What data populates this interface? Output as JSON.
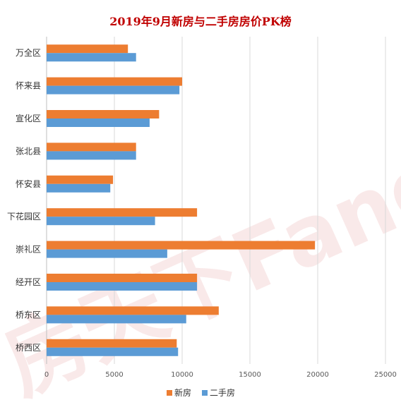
{
  "chart_data": {
    "type": "bar",
    "orientation": "horizontal",
    "title": "2019年9月新房与二手房房价PK榜",
    "categories": [
      "万全区",
      "怀来县",
      "宣化区",
      "张北县",
      "怀安县",
      "下花园区",
      "崇礼区",
      "经开区",
      "桥东区",
      "桥西区"
    ],
    "series": [
      {
        "name": "新房",
        "color": "#ed7d31",
        "values": [
          6000,
          10000,
          8300,
          6600,
          4900,
          11100,
          19800,
          11100,
          12700,
          9600
        ]
      },
      {
        "name": "二手房",
        "color": "#5b9bd5",
        "values": [
          6600,
          9800,
          7600,
          6600,
          4700,
          8000,
          8900,
          11100,
          10300,
          9700
        ]
      }
    ],
    "xlim": [
      0,
      25000
    ],
    "xticks": [
      "0",
      "5000",
      "10000",
      "15000",
      "20000",
      "25000"
    ],
    "grid": true,
    "legend_position": "bottom"
  },
  "watermark": "房天下Fang.com"
}
